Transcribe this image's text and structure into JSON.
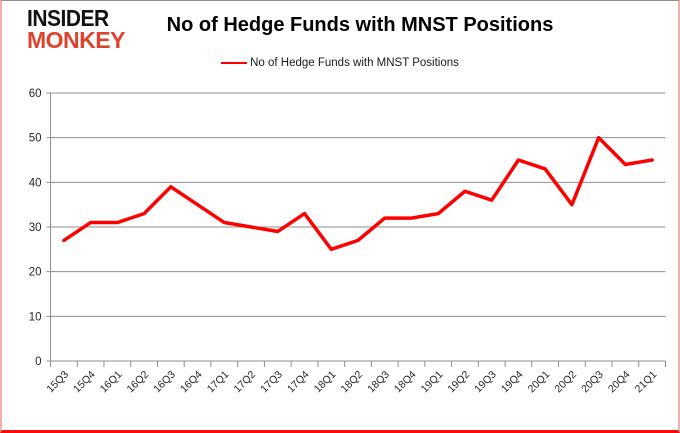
{
  "logo": {
    "line1": "INSIDER",
    "line2": "MONKEY",
    "line1_color": "#121212",
    "line2_color": "#dd4430"
  },
  "header": {
    "title": "No of Hedge Funds with MNST Positions"
  },
  "legend": {
    "label": "No of Hedge Funds with MNST Positions",
    "line_color": "#ff0000"
  },
  "chart_data": {
    "type": "line",
    "title": "No of Hedge Funds with MNST Positions",
    "categories": [
      "15Q3",
      "15Q4",
      "16Q1",
      "16Q2",
      "16Q3",
      "16Q4",
      "17Q1",
      "17Q2",
      "17Q3",
      "17Q4",
      "18Q1",
      "18Q2",
      "18Q3",
      "18Q4",
      "19Q1",
      "19Q2",
      "19Q3",
      "19Q4",
      "20Q1",
      "20Q2",
      "20Q3",
      "20Q4",
      "21Q1"
    ],
    "series": [
      {
        "name": "No of Hedge Funds with MNST Positions",
        "color": "#ff0000",
        "values": [
          27,
          31,
          31,
          33,
          39,
          35,
          31,
          30,
          29,
          33,
          25,
          27,
          32,
          32,
          33,
          38,
          36,
          45,
          43,
          35,
          50,
          44,
          45
        ]
      }
    ],
    "xlabel": "",
    "ylabel": "",
    "ylim": [
      0,
      60
    ],
    "ytick_step": 10,
    "grid": "horizontal",
    "legend_position": "top",
    "gridline_color": "#8e8e8e",
    "axis_label_color": "#262626"
  }
}
